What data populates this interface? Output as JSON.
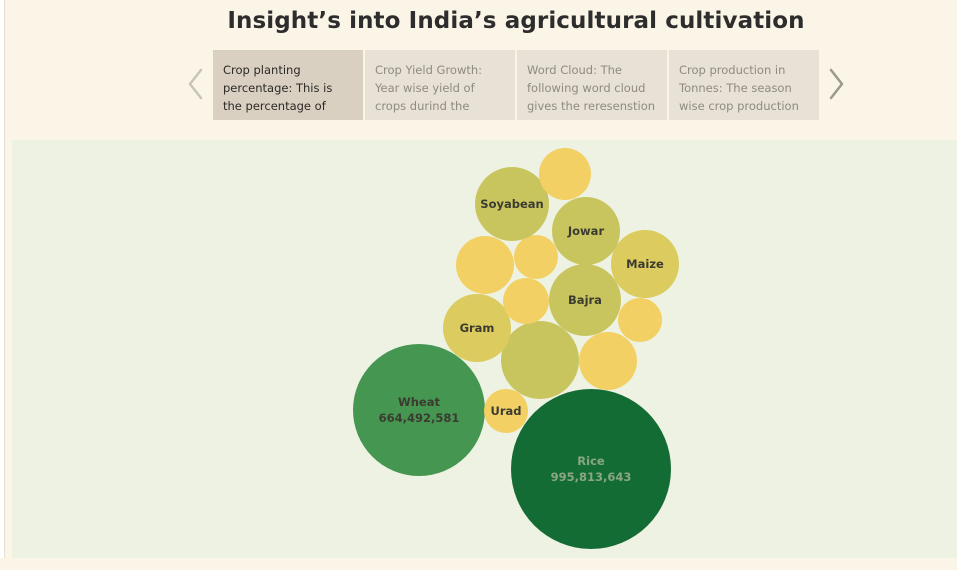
{
  "title": "Insight’s into India’s agricultural cultivation",
  "story_points": [
    {
      "text": "Crop planting percentage: This is the percentage of crops",
      "active": true
    },
    {
      "text": "Crop Yield Growth: Year wise yield of crops durind the",
      "active": false
    },
    {
      "text": "Word Cloud: The following word cloud gives the reresenstion",
      "active": false
    },
    {
      "text": "Crop production in Tonnes: The season wise crop production",
      "active": false
    }
  ],
  "colors": {
    "background": "#fbf5e7",
    "viz_background": "#eef2e2",
    "active_card": "#d9d0c2",
    "inactive_card": "#e8e1d5",
    "dark_green": "#136c33",
    "mid_green": "#459651",
    "olive": "#c8c55f",
    "olive_yellow": "#dccb5e",
    "yellow": "#f3d064"
  },
  "icons": {
    "prev": "chevron-left-icon",
    "next": "chevron-right-icon"
  },
  "chart_data": {
    "type": "bubble",
    "measure": "production",
    "bubbles": [
      {
        "label": "Rice",
        "value": "995,813,643",
        "value_num": 995813643,
        "color": "#136c33",
        "dark": true
      },
      {
        "label": "Wheat",
        "value": "664,492,581",
        "value_num": 664492581,
        "color": "#459651",
        "dark": false
      },
      {
        "label": "Urad",
        "value": "",
        "color": "#f3d064",
        "dark": false
      },
      {
        "label": "",
        "value": "",
        "color": "#c8c55f",
        "dark": false
      },
      {
        "label": "",
        "value": "",
        "color": "#f3d064",
        "dark": false
      },
      {
        "label": "Gram",
        "value": "",
        "color": "#dccb5e",
        "dark": false
      },
      {
        "label": "",
        "value": "",
        "color": "#f3d064",
        "dark": false
      },
      {
        "label": "Bajra",
        "value": "",
        "color": "#c8c55f",
        "dark": false
      },
      {
        "label": "",
        "value": "",
        "color": "#f3d064",
        "dark": false
      },
      {
        "label": "",
        "value": "",
        "color": "#f3d064",
        "dark": false
      },
      {
        "label": "",
        "value": "",
        "color": "#f3d064",
        "dark": false
      },
      {
        "label": "Maize",
        "value": "",
        "color": "#dccb5e",
        "dark": false
      },
      {
        "label": "Jowar",
        "value": "",
        "color": "#c8c55f",
        "dark": false
      },
      {
        "label": "Soyabean",
        "value": "",
        "color": "#c8c55f",
        "dark": false
      },
      {
        "label": "",
        "value": "",
        "color": "#f3d064",
        "dark": false
      }
    ]
  }
}
